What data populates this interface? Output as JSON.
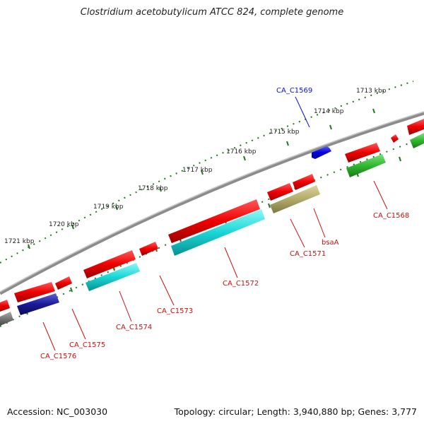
{
  "title": "Clostridium acetobutylicum ATCC 824, complete genome",
  "footer": {
    "accession": "Accession: NC_003030",
    "summary": "Topology: circular; Length: 3,940,880 bp; Genes: 3,777"
  },
  "colors": {
    "backbone": "#8c8c8c",
    "ticks": "#1f7a1f",
    "forward_label": "#1010c8",
    "reverse_label": "#cc1010"
  },
  "scale_labels": [
    "1713 kbp",
    "1714 kbp",
    "1715 kbp",
    "1716 kbp",
    "1717 kbp",
    "1718 kbp",
    "1719 kbp",
    "1720 kbp",
    "1721 kbp"
  ],
  "gene_labels": [
    {
      "name": "CA_C1569",
      "color": "#1010c8"
    },
    {
      "name": "CA_C1568",
      "color": "#cc1010"
    },
    {
      "name": "bsaA",
      "color": "#cc1010"
    },
    {
      "name": "CA_C1571",
      "color": "#cc1010"
    },
    {
      "name": "CA_C1572",
      "color": "#cc1010"
    },
    {
      "name": "CA_C1573",
      "color": "#cc1010"
    },
    {
      "name": "CA_C1574",
      "color": "#cc1010"
    },
    {
      "name": "CA_C1575",
      "color": "#cc1010"
    },
    {
      "name": "CA_C1576",
      "color": "#cc1010"
    }
  ]
}
